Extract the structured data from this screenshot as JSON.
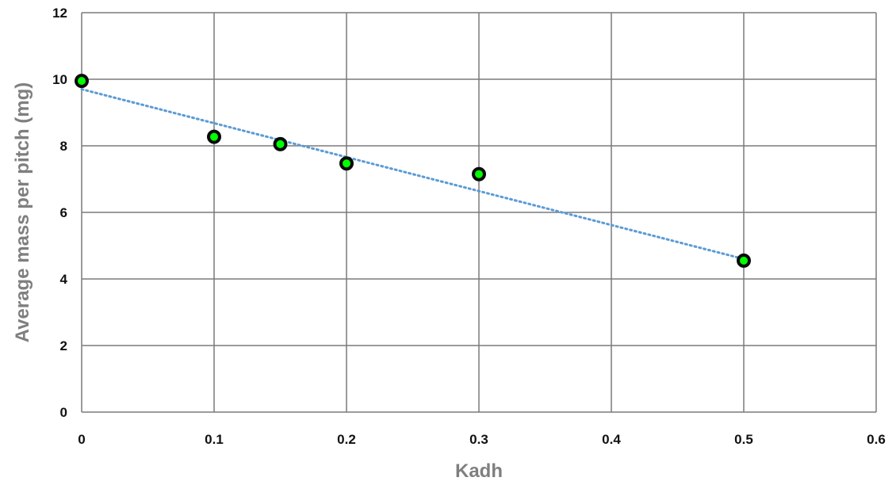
{
  "chart_data": {
    "type": "scatter",
    "title": "",
    "xlabel": "Kadh",
    "ylabel": "Average mass per pitch (mg)",
    "xlim": [
      0,
      0.6
    ],
    "ylim": [
      0,
      12
    ],
    "x_ticks": [
      "0",
      "0.1",
      "0.2",
      "0.3",
      "0.4",
      "0.5",
      "0.6"
    ],
    "y_ticks": [
      "0",
      "2",
      "4",
      "6",
      "8",
      "10",
      "12"
    ],
    "grid": true,
    "legend": "none",
    "series": [
      {
        "x": [
          0,
          0.1,
          0.15,
          0.2,
          0.3,
          0.5
        ],
        "y": [
          9.95,
          8.27,
          8.05,
          7.47,
          7.15,
          4.55
        ],
        "marker_fill": "#00ff00",
        "marker_edge": "#0a0a0a"
      }
    ],
    "trendline": {
      "type": "linear",
      "style": "dotted",
      "color": "#5b9bd5",
      "x": [
        0,
        0.5
      ],
      "y": [
        9.7,
        4.6
      ]
    }
  }
}
